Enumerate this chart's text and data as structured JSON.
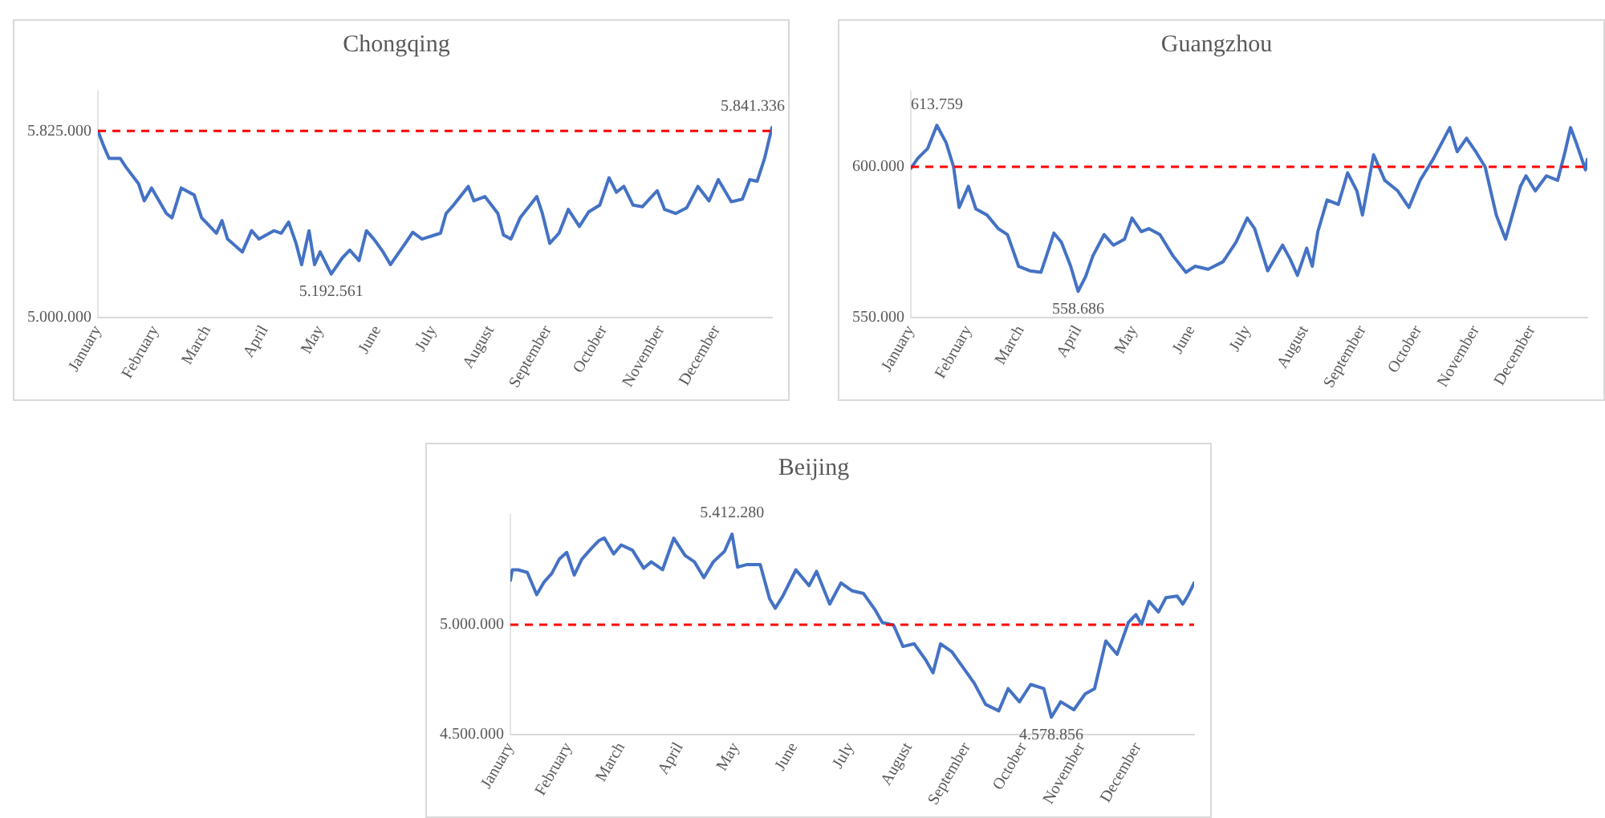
{
  "chart_data": [
    {
      "type": "line",
      "title": "Chongqing",
      "x": [
        "--01-01",
        "--01-04",
        "--01-07",
        "--01-13",
        "--01-16",
        "--01-23",
        "--01-26",
        "--01-30",
        "--02-07",
        "--02-10",
        "--02-15",
        "--02-22",
        "--02-26",
        "--03-06",
        "--03-09",
        "--03-12",
        "--03-20",
        "--03-25",
        "--03-29",
        "--04-06",
        "--04-10",
        "--04-14",
        "--04-18",
        "--04-21",
        "--04-25",
        "--04-28",
        "--05-01",
        "--05-07",
        "--05-13",
        "--05-17",
        "--05-22",
        "--05-26",
        "--05-30",
        "--06-04",
        "--06-08",
        "--06-16",
        "--06-20",
        "--06-25",
        "--07-05",
        "--07-08",
        "--07-12",
        "--07-20",
        "--07-23",
        "--07-29",
        "--08-05",
        "--08-08",
        "--08-12",
        "--08-17",
        "--08-26",
        "--08-29",
        "--09-02",
        "--09-07",
        "--09-12",
        "--09-18",
        "--09-23",
        "--09-29",
        "--10-04",
        "--10-08",
        "--10-12",
        "--10-17",
        "--10-22",
        "--10-30",
        "--11-03",
        "--11-09",
        "--11-15",
        "--11-21",
        "--11-27",
        "--12-02",
        "--12-09",
        "--12-15",
        "--12-19",
        "--12-23",
        "--12-27",
        "--12-31"
      ],
      "series": [
        {
          "color": "#4472c4",
          "values": [
            5825000,
            5761000,
            5704000,
            5704000,
            5667000,
            5591000,
            5516000,
            5573000,
            5460000,
            5441000,
            5573000,
            5542000,
            5441000,
            5373000,
            5429000,
            5347000,
            5290000,
            5384000,
            5347000,
            5384000,
            5373000,
            5422000,
            5328000,
            5234000,
            5384000,
            5234000,
            5290000,
            5192561,
            5264000,
            5298000,
            5252000,
            5384000,
            5347000,
            5290000,
            5234000,
            5328000,
            5377000,
            5347000,
            5373000,
            5460000,
            5497000,
            5580000,
            5516000,
            5535000,
            5460000,
            5365000,
            5347000,
            5441000,
            5535000,
            5460000,
            5328000,
            5373000,
            5478000,
            5403000,
            5467000,
            5497000,
            5618000,
            5554000,
            5580000,
            5497000,
            5490000,
            5561000,
            5478000,
            5460000,
            5486000,
            5580000,
            5516000,
            5610000,
            5512000,
            5524000,
            5610000,
            5603000,
            5704000,
            5841336
          ]
        }
      ],
      "xlim": [
        "--01-01",
        "--12-31"
      ],
      "xticks": [
        {
          "value": "--01-01",
          "label": "January"
        },
        {
          "value": "--02-01",
          "label": "February"
        },
        {
          "value": "--03-01",
          "label": "March"
        },
        {
          "value": "--04-01",
          "label": "April"
        },
        {
          "value": "--05-01",
          "label": "May"
        },
        {
          "value": "--06-01",
          "label": "June"
        },
        {
          "value": "--07-01",
          "label": "July"
        },
        {
          "value": "--08-01",
          "label": "August"
        },
        {
          "value": "--09-01",
          "label": "September"
        },
        {
          "value": "--10-01",
          "label": "October"
        },
        {
          "value": "--11-01",
          "label": "November"
        },
        {
          "value": "--12-01",
          "label": "December"
        }
      ],
      "ylim": [
        5000000,
        6000000
      ],
      "yticks": [
        {
          "value": 5000000,
          "label": "5.000.000"
        },
        {
          "value": 5825000,
          "label": "5.825.000"
        }
      ],
      "ref_lines": [
        {
          "axis": "y",
          "value": 5825000,
          "color": "#ff0000",
          "line_style": "dashed"
        }
      ],
      "annotations": [
        {
          "text": "5.192.561",
          "x": "--05-07",
          "y": 5192561
        },
        {
          "text": "5.841.336",
          "x": "--12-31",
          "y": 5841336
        }
      ],
      "grid": false,
      "legend": false,
      "marker": "none",
      "line_style": "solid"
    },
    {
      "type": "line",
      "title": "Guangzhou",
      "x": [
        "--01-01",
        "--01-05",
        "--01-10",
        "--01-15",
        "--01-20",
        "--01-24",
        "--01-27",
        "--02-01",
        "--02-05",
        "--02-11",
        "--02-17",
        "--02-22",
        "--02-28",
        "--03-06",
        "--03-12",
        "--03-15",
        "--03-19",
        "--03-23",
        "--03-28",
        "--04-01",
        "--04-05",
        "--04-09",
        "--04-15",
        "--04-20",
        "--04-26",
        "--04-30",
        "--05-05",
        "--05-09",
        "--05-15",
        "--05-22",
        "--05-29",
        "--06-03",
        "--06-10",
        "--06-18",
        "--06-25",
        "--07-01",
        "--07-05",
        "--07-12",
        "--07-20",
        "--07-24",
        "--07-28",
        "--08-02",
        "--08-05",
        "--08-08",
        "--08-13",
        "--08-19",
        "--08-24",
        "--08-29",
        "--09-01",
        "--09-07",
        "--09-13",
        "--09-20",
        "--09-26",
        "--10-02",
        "--10-09",
        "--10-18",
        "--10-22",
        "--10-27",
        "--11-01",
        "--11-06",
        "--11-12",
        "--11-17",
        "--11-25",
        "--11-28",
        "--12-03",
        "--12-09",
        "--12-15",
        "--12-19",
        "--12-22",
        "--12-25",
        "--12-30",
        "--12-31"
      ],
      "series": [
        {
          "color": "#4472c4",
          "values": [
            599500,
            603000,
            606000,
            613759,
            608000,
            600000,
            586500,
            593500,
            586000,
            584000,
            579500,
            577500,
            567000,
            565500,
            565000,
            570500,
            578000,
            575000,
            567000,
            558686,
            563500,
            570500,
            577500,
            574000,
            576000,
            583000,
            578500,
            579500,
            577500,
            570500,
            565000,
            567000,
            566000,
            568500,
            575000,
            583000,
            579500,
            565500,
            574000,
            569500,
            564000,
            573000,
            567000,
            578500,
            589000,
            587500,
            598000,
            592000,
            584000,
            604000,
            595500,
            592000,
            586500,
            595500,
            602500,
            613000,
            605000,
            609500,
            605000,
            600000,
            584000,
            576000,
            593500,
            597000,
            592000,
            597000,
            595500,
            605000,
            613000,
            608000,
            599000,
            602500
          ]
        }
      ],
      "xlim": [
        "--01-01",
        "--12-31"
      ],
      "xticks": [
        {
          "value": "--01-01",
          "label": "January"
        },
        {
          "value": "--02-01",
          "label": "February"
        },
        {
          "value": "--03-01",
          "label": "March"
        },
        {
          "value": "--04-01",
          "label": "April"
        },
        {
          "value": "--05-01",
          "label": "May"
        },
        {
          "value": "--06-01",
          "label": "June"
        },
        {
          "value": "--07-01",
          "label": "July"
        },
        {
          "value": "--08-01",
          "label": "August"
        },
        {
          "value": "--09-01",
          "label": "September"
        },
        {
          "value": "--10-01",
          "label": "October"
        },
        {
          "value": "--11-01",
          "label": "November"
        },
        {
          "value": "--12-01",
          "label": "December"
        }
      ],
      "ylim": [
        550000,
        625000
      ],
      "yticks": [
        {
          "value": 550000,
          "label": "550.000"
        },
        {
          "value": 600000,
          "label": "600.000"
        }
      ],
      "ref_lines": [
        {
          "axis": "y",
          "value": 600000,
          "color": "#ff0000",
          "line_style": "dashed"
        }
      ],
      "annotations": [
        {
          "text": "613.759",
          "x": "--01-15",
          "y": 613759
        },
        {
          "text": "558.686",
          "x": "--04-01",
          "y": 558686
        }
      ],
      "grid": false,
      "legend": false,
      "marker": "none",
      "line_style": "solid"
    },
    {
      "type": "line",
      "title": "Beijing",
      "x": [
        "--01-01",
        "--01-02",
        "--01-05",
        "--01-10",
        "--01-15",
        "--01-19",
        "--01-23",
        "--01-27",
        "--01-31",
        "--02-04",
        "--02-08",
        "--02-13",
        "--02-17",
        "--02-20",
        "--02-25",
        "--03-01",
        "--03-07",
        "--03-13",
        "--03-17",
        "--03-23",
        "--03-29",
        "--04-04",
        "--04-09",
        "--04-14",
        "--04-19",
        "--04-25",
        "--04-29",
        "--05-02",
        "--05-07",
        "--05-14",
        "--05-19",
        "--05-22",
        "--05-26",
        "--06-02",
        "--06-09",
        "--06-13",
        "--06-20",
        "--06-26",
        "--07-02",
        "--07-08",
        "--07-14",
        "--07-18",
        "--07-24",
        "--07-29",
        "--08-04",
        "--08-10",
        "--08-14",
        "--08-18",
        "--08-24",
        "--09-01",
        "--09-05",
        "--09-11",
        "--09-18",
        "--09-23",
        "--09-29",
        "--10-05",
        "--10-12",
        "--10-16",
        "--10-21",
        "--10-28",
        "--11-03",
        "--11-08",
        "--11-14",
        "--11-20",
        "--11-26",
        "--11-30",
        "--12-03",
        "--12-07",
        "--12-12",
        "--12-16",
        "--12-22",
        "--12-25",
        "--12-28",
        "--12-31"
      ],
      "series": [
        {
          "color": "#4472c4",
          "values": [
            5202000,
            5250000,
            5250000,
            5238000,
            5137000,
            5195000,
            5233000,
            5298000,
            5329000,
            5226000,
            5298000,
            5346000,
            5382000,
            5395000,
            5322000,
            5363000,
            5339000,
            5257000,
            5286000,
            5250000,
            5394000,
            5315000,
            5286000,
            5214000,
            5286000,
            5334000,
            5412280,
            5262000,
            5274000,
            5274000,
            5118000,
            5075000,
            5130000,
            5250000,
            5178000,
            5243000,
            5094000,
            5190000,
            5154000,
            5142000,
            5070000,
            5010000,
            4998000,
            4901000,
            4913000,
            4841000,
            4781000,
            4913000,
            4877000,
            4781000,
            4733000,
            4637000,
            4608000,
            4709000,
            4649000,
            4728000,
            4709000,
            4578856,
            4649000,
            4613000,
            4685000,
            4709000,
            4926000,
            4865000,
            5010000,
            5046000,
            5002000,
            5106000,
            5058000,
            5123000,
            5130000,
            5094000,
            5137000,
            5190000
          ]
        }
      ],
      "xlim": [
        "--01-01",
        "--12-31"
      ],
      "xticks": [
        {
          "value": "--01-01",
          "label": "January"
        },
        {
          "value": "--02-01",
          "label": "February"
        },
        {
          "value": "--03-01",
          "label": "March"
        },
        {
          "value": "--04-01",
          "label": "April"
        },
        {
          "value": "--05-01",
          "label": "May"
        },
        {
          "value": "--06-01",
          "label": "June"
        },
        {
          "value": "--07-01",
          "label": "July"
        },
        {
          "value": "--08-01",
          "label": "August"
        },
        {
          "value": "--09-01",
          "label": "September"
        },
        {
          "value": "--10-01",
          "label": "October"
        },
        {
          "value": "--11-01",
          "label": "November"
        },
        {
          "value": "--12-01",
          "label": "December"
        }
      ],
      "ylim": [
        4500000,
        5500000
      ],
      "yticks": [
        {
          "value": 4500000,
          "label": "4.500.000"
        },
        {
          "value": 5000000,
          "label": "5.000.000"
        }
      ],
      "ref_lines": [
        {
          "axis": "y",
          "value": 5000000,
          "color": "#ff0000",
          "line_style": "dashed"
        }
      ],
      "annotations": [
        {
          "text": "5.412.280",
          "x": "--04-29",
          "y": 5412280
        },
        {
          "text": "4.578.856",
          "x": "--10-16",
          "y": 4578856
        }
      ],
      "grid": false,
      "legend": false,
      "marker": "none",
      "line_style": "solid"
    }
  ]
}
